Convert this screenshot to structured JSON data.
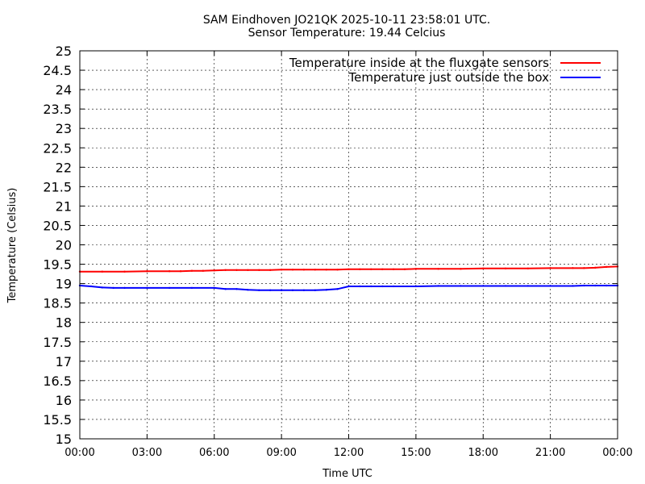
{
  "chart_data": {
    "type": "line",
    "title": "SAM Eindhoven JO21QK 2025-10-11 23:58:01 UTC.",
    "subtitle": "Sensor Temperature: 19.44 Celcius",
    "xlabel": "Time UTC",
    "ylabel": "Temperature (Celsius)",
    "xlim": [
      0,
      24
    ],
    "ylim": [
      15,
      25
    ],
    "x_tick_labels": [
      "00:00",
      "03:00",
      "06:00",
      "09:00",
      "12:00",
      "15:00",
      "18:00",
      "21:00",
      "00:00"
    ],
    "y_tick_labels": [
      "15",
      "15.5",
      "16",
      "16.5",
      "17",
      "17.5",
      "18",
      "18.5",
      "19",
      "19.5",
      "20",
      "20.5",
      "21",
      "21.5",
      "22",
      "22.5",
      "23",
      "23.5",
      "24",
      "24.5",
      "25"
    ],
    "grid": true,
    "legend_position": "top-right",
    "series": [
      {
        "name": "Temperature inside at the fluxgate sensors",
        "color": "#ff0000",
        "x": [
          0.0,
          1.0,
          2.0,
          3.0,
          4.0,
          4.5,
          5.0,
          5.5,
          6.0,
          6.5,
          7.0,
          7.5,
          8.0,
          8.5,
          9.0,
          9.5,
          10.0,
          10.5,
          11.0,
          11.5,
          12.0,
          12.5,
          13.0,
          13.5,
          14.0,
          14.5,
          15.0,
          16.0,
          17.0,
          18.0,
          19.0,
          20.0,
          21.0,
          22.0,
          22.5,
          23.0,
          23.5,
          24.0
        ],
        "y": [
          19.31,
          19.31,
          19.31,
          19.32,
          19.32,
          19.32,
          19.33,
          19.33,
          19.34,
          19.35,
          19.35,
          19.35,
          19.35,
          19.35,
          19.36,
          19.36,
          19.36,
          19.36,
          19.36,
          19.36,
          19.37,
          19.37,
          19.37,
          19.37,
          19.37,
          19.37,
          19.38,
          19.38,
          19.38,
          19.39,
          19.39,
          19.39,
          19.4,
          19.4,
          19.4,
          19.41,
          19.43,
          19.44
        ]
      },
      {
        "name": "Temperature just outside the box",
        "color": "#0000ff",
        "x": [
          0.0,
          0.5,
          1.0,
          1.5,
          2.0,
          3.0,
          4.0,
          5.0,
          6.0,
          6.5,
          7.0,
          7.5,
          8.0,
          8.5,
          9.0,
          9.5,
          10.0,
          10.5,
          11.0,
          11.5,
          12.0,
          12.5,
          13.0,
          13.5,
          14.0,
          15.0,
          16.0,
          17.0,
          18.0,
          19.0,
          20.0,
          21.0,
          22.0,
          22.5,
          23.0,
          23.5,
          24.0
        ],
        "y": [
          18.95,
          18.93,
          18.9,
          18.89,
          18.89,
          18.89,
          18.89,
          18.89,
          18.89,
          18.86,
          18.86,
          18.84,
          18.83,
          18.83,
          18.83,
          18.83,
          18.83,
          18.83,
          18.84,
          18.86,
          18.93,
          18.93,
          18.93,
          18.93,
          18.93,
          18.93,
          18.94,
          18.94,
          18.94,
          18.94,
          18.94,
          18.94,
          18.94,
          18.95,
          18.95,
          18.95,
          18.95
        ]
      }
    ]
  }
}
